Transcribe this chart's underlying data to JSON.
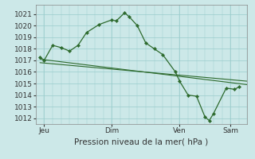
{
  "background_color": "#cce8e8",
  "grid_color": "#99cccc",
  "line_color": "#2d6a2d",
  "marker_color": "#2d6a2d",
  "xlabel": "Pression niveau de la mer( hPa )",
  "x_tick_labels": [
    "Jeu",
    "Dim",
    "Ven",
    "Sam"
  ],
  "x_tick_positions": [
    1,
    9,
    17,
    23
  ],
  "ylim": [
    1011.5,
    1021.8
  ],
  "yticks": [
    1012,
    1013,
    1014,
    1015,
    1016,
    1017,
    1018,
    1019,
    1020,
    1021
  ],
  "xlim": [
    0,
    25
  ],
  "series1_x": [
    0.5,
    1.0,
    2.0,
    3.0,
    4.0,
    5.0,
    6.0,
    7.5,
    9.0,
    9.5,
    10.5,
    11.0,
    12.0,
    13.0,
    14.0,
    15.0,
    16.5,
    17.0,
    18.0,
    19.0,
    20.0,
    20.5,
    21.0,
    22.5,
    23.5,
    24.0
  ],
  "series1_y": [
    1017.3,
    1017.0,
    1018.3,
    1018.1,
    1017.8,
    1018.3,
    1019.4,
    1020.1,
    1020.5,
    1020.4,
    1021.1,
    1020.8,
    1020.0,
    1018.5,
    1018.0,
    1017.5,
    1016.0,
    1015.2,
    1014.0,
    1013.9,
    1012.1,
    1011.8,
    1012.4,
    1014.6,
    1014.5,
    1014.7
  ],
  "series2_x": [
    0.5,
    25.0
  ],
  "series2_y": [
    1017.1,
    1014.9
  ],
  "series3_x": [
    0.5,
    25.0
  ],
  "series3_y": [
    1016.8,
    1015.2
  ],
  "figwidth": 3.2,
  "figheight": 2.0,
  "dpi": 100
}
